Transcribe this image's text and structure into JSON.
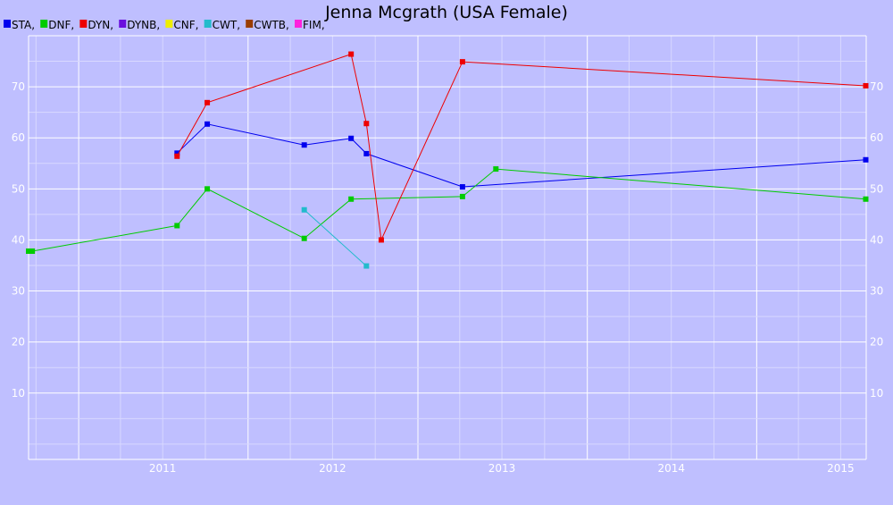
{
  "chart_data": {
    "type": "line",
    "title": "Jenna Mcgrath (USA Female)",
    "xlabel": "",
    "ylabel": "",
    "x_axis": {
      "type": "date",
      "range": [
        "2010-09-15",
        "2015-08-25"
      ],
      "tick_labels": [
        "2011",
        "2012",
        "2013",
        "2014",
        "2015"
      ]
    },
    "y_axis": {
      "range": [
        -3,
        80
      ],
      "tick_values": [
        10,
        20,
        30,
        40,
        50,
        60,
        70
      ],
      "tick_labels": [
        "10",
        "20",
        "30",
        "40",
        "50",
        "60",
        "70"
      ],
      "right_axis_labels": true
    },
    "grid": true,
    "legend_placement": "top-left",
    "series": [
      {
        "name": "STA",
        "color": "#0000ee",
        "points": [
          {
            "x": "2011-08-01",
            "y": 57
          },
          {
            "x": "2011-10-05",
            "y": 62.7
          },
          {
            "x": "2012-05-01",
            "y": 58.6
          },
          {
            "x": "2012-08-10",
            "y": 59.9
          },
          {
            "x": "2012-09-12",
            "y": 56.9
          },
          {
            "x": "2013-04-07",
            "y": 50.4
          },
          {
            "x": "2015-08-24",
            "y": 55.7
          }
        ]
      },
      {
        "name": "DNF",
        "color": "#00cc00",
        "points": [
          {
            "x": "2010-09-15",
            "y": 37.8
          },
          {
            "x": "2010-09-23",
            "y": 37.8
          },
          {
            "x": "2011-08-01",
            "y": 42.8
          },
          {
            "x": "2011-10-05",
            "y": 50
          },
          {
            "x": "2012-05-01",
            "y": 40.3
          },
          {
            "x": "2012-08-10",
            "y": 48
          },
          {
            "x": "2013-04-07",
            "y": 48.5
          },
          {
            "x": "2013-06-18",
            "y": 53.9
          },
          {
            "x": "2015-08-24",
            "y": 48
          }
        ]
      },
      {
        "name": "DYN",
        "color": "#ee0000",
        "points": [
          {
            "x": "2011-08-01",
            "y": 56.4
          },
          {
            "x": "2011-10-05",
            "y": 66.9
          },
          {
            "x": "2012-08-10",
            "y": 76.4
          },
          {
            "x": "2012-09-12",
            "y": 62.8
          },
          {
            "x": "2012-10-14",
            "y": 40
          },
          {
            "x": "2013-04-07",
            "y": 74.9
          },
          {
            "x": "2015-08-24",
            "y": 70.2
          }
        ]
      },
      {
        "name": "DYNB",
        "color": "#6a0fdd",
        "points": []
      },
      {
        "name": "CNF",
        "color": "#eeee00",
        "points": []
      },
      {
        "name": "CWT",
        "color": "#22bbcc",
        "points": [
          {
            "x": "2012-05-01",
            "y": 45.9
          },
          {
            "x": "2012-09-12",
            "y": 34.9
          }
        ]
      },
      {
        "name": "CWTB",
        "color": "#9a3d00",
        "points": []
      },
      {
        "name": "FIM",
        "color": "#ff22dd",
        "points": []
      }
    ]
  }
}
